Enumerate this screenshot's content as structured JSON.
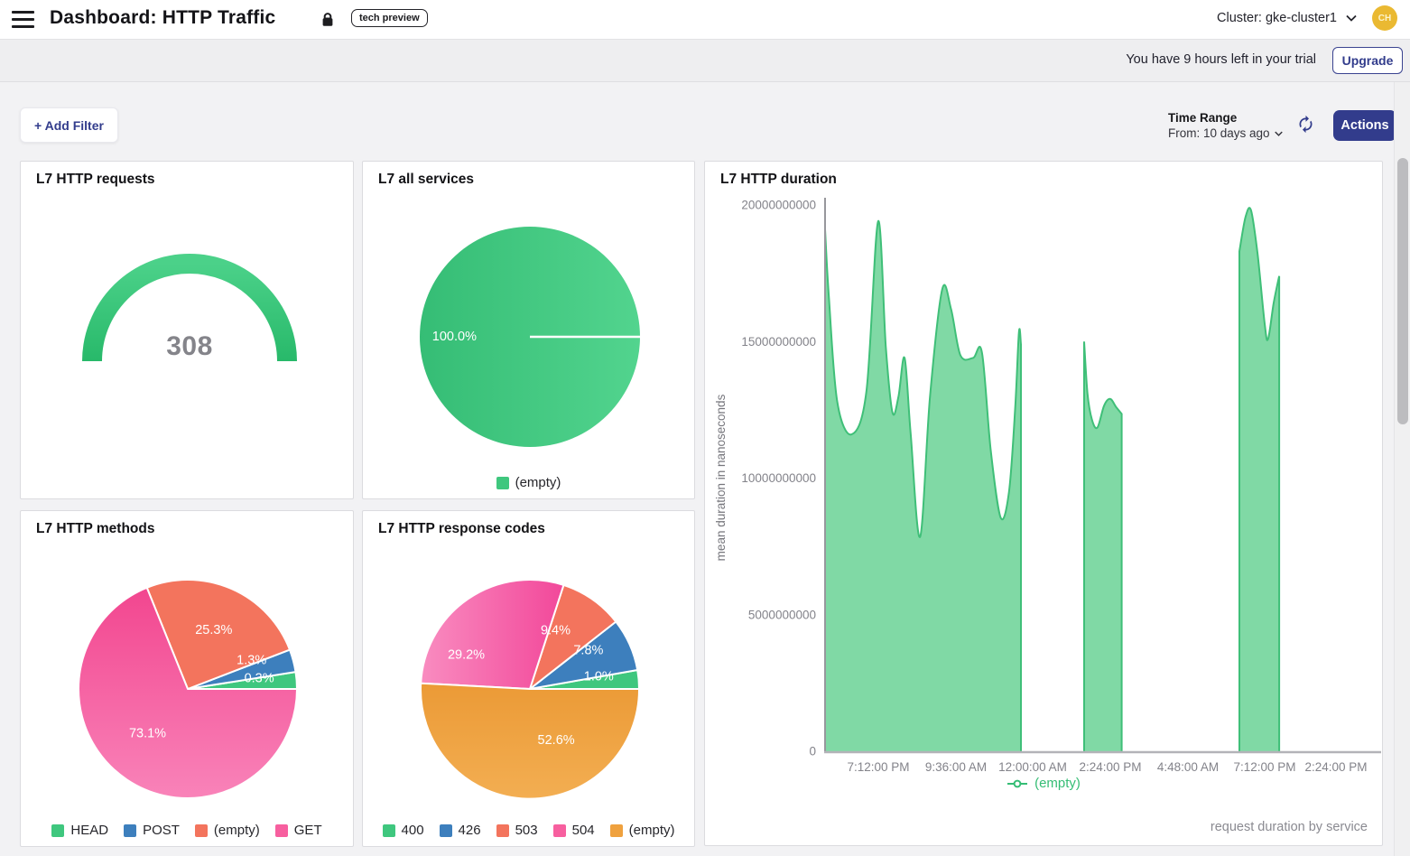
{
  "header": {
    "title": "Dashboard: HTTP Traffic",
    "badge": "tech preview",
    "cluster_label": "Cluster: gke-cluster1",
    "avatar_initials": "CH"
  },
  "banner": {
    "trial_text": "You have 9 hours left in your trial",
    "upgrade_label": "Upgrade"
  },
  "toolbar": {
    "add_filter_label": "+ Add Filter",
    "time_range_title": "Time Range",
    "time_range_from": "From: 10 days ago",
    "actions_label": "Actions"
  },
  "panels": {
    "requests": {
      "title": "L7 HTTP requests"
    },
    "services": {
      "title": "L7 all services"
    },
    "duration": {
      "title": "L7 HTTP duration",
      "y_axis_title": "mean duration in nanoseconds",
      "legend_label": "(empty)",
      "caption": "request duration by service"
    },
    "methods": {
      "title": "L7 HTTP methods"
    },
    "codes": {
      "title": "L7 HTTP response codes"
    }
  },
  "colors": {
    "accent_navy": "#323c8c",
    "green": "#3fc77e",
    "blue": "#3d7fbd",
    "salmon": "#f3745d",
    "pink": "#f75f9f",
    "orange": "#efa13e",
    "area_fill": "#80d9a5",
    "area_line": "#3fbf78",
    "avatar_bg": "#eab932"
  },
  "chart_data": [
    {
      "id": "requests",
      "type": "gauge",
      "title": "L7 HTTP requests",
      "value": 308,
      "display_value": "308",
      "arc_gradient": [
        "#4bd189",
        "#28b96a"
      ],
      "value_color": "#84848a"
    },
    {
      "id": "services",
      "type": "pie",
      "title": "L7 all services",
      "radius_line": true,
      "slices": [
        {
          "label": "(empty)",
          "pct": 100.0,
          "pct_label": "100.0%",
          "fill": {
            "grad": [
              "#35bd75",
              "#52d48e"
            ],
            "dir": "h"
          },
          "deg": [
            0,
            360
          ],
          "label_deg": 180,
          "label_r": 0.685
        }
      ],
      "legend": [
        {
          "label": "(empty)",
          "color": "#3fc77e"
        }
      ]
    },
    {
      "id": "duration",
      "type": "area",
      "title": "L7 HTTP duration",
      "series_name": "(empty)",
      "ylabel": "mean duration in nanoseconds",
      "ylim": [
        0,
        20000000000
      ],
      "yticks": [
        {
          "value": 20000000000,
          "label": "20000000000"
        },
        {
          "value": 15000000000,
          "label": "15000000000"
        },
        {
          "value": 10000000000,
          "label": "10000000000"
        },
        {
          "value": 5000000000,
          "label": "5000000000"
        },
        {
          "value": 0,
          "label": "0"
        }
      ],
      "xticks": [
        {
          "f": 0.0964,
          "label": "7:12:00 PM"
        },
        {
          "f": 0.2369,
          "label": "9:36:00 AM"
        },
        {
          "f": 0.3758,
          "label": "12:00:00 AM"
        },
        {
          "f": 0.5163,
          "label": "2:24:00 PM"
        },
        {
          "f": 0.6569,
          "label": "4:48:00 AM"
        },
        {
          "f": 0.7958,
          "label": "7:12:00 PM"
        },
        {
          "f": 0.9248,
          "label": "2:24:00 PM"
        }
      ],
      "unit": "nanoseconds",
      "segments_e9": [
        [
          [
            0.0,
            19.1
          ],
          [
            0.007,
            16.6
          ],
          [
            0.022,
            12.8
          ],
          [
            0.048,
            11.6
          ],
          [
            0.075,
            13.2
          ],
          [
            0.096,
            19.4
          ],
          [
            0.11,
            14.8
          ],
          [
            0.122,
            12.4
          ],
          [
            0.133,
            13.0
          ],
          [
            0.144,
            14.4
          ],
          [
            0.155,
            11.6
          ],
          [
            0.172,
            7.85
          ],
          [
            0.19,
            13.0
          ],
          [
            0.212,
            16.9
          ],
          [
            0.228,
            16.2
          ],
          [
            0.245,
            14.5
          ],
          [
            0.268,
            14.4
          ],
          [
            0.284,
            14.6
          ],
          [
            0.3,
            11.0
          ],
          [
            0.318,
            8.55
          ],
          [
            0.333,
            9.5
          ],
          [
            0.344,
            12.5
          ],
          [
            0.351,
            15.35
          ],
          [
            0.3546,
            14.9
          ]
        ],
        [
          [
            0.469,
            15.0
          ],
          [
            0.475,
            13.1
          ],
          [
            0.483,
            12.15
          ],
          [
            0.493,
            11.85
          ],
          [
            0.505,
            12.65
          ],
          [
            0.516,
            12.9
          ],
          [
            0.527,
            12.6
          ],
          [
            0.537,
            12.35
          ]
        ],
        [
          [
            0.75,
            18.3
          ],
          [
            0.761,
            19.55
          ],
          [
            0.771,
            19.8
          ],
          [
            0.783,
            18.2
          ],
          [
            0.796,
            15.6
          ],
          [
            0.802,
            15.1
          ],
          [
            0.812,
            16.4
          ],
          [
            0.822,
            17.4
          ]
        ]
      ],
      "line_color": "#3fbf78",
      "fill_color": "#80d9a5",
      "legend_color": "#35bd75",
      "legend_label": "(empty)",
      "caption": "request duration by service"
    },
    {
      "id": "methods",
      "type": "pie",
      "title": "L7 HTTP methods",
      "slices": [
        {
          "label": "HEAD",
          "pct": 0.3,
          "pct_label": "0.3%",
          "fill": "#3fc77e",
          "deg": [
            0,
            9
          ],
          "label_deg": 8,
          "label_r": 0.66
        },
        {
          "label": "POST",
          "pct": 1.3,
          "pct_label": "1.3%",
          "fill": "#3d7fbd",
          "deg": [
            9,
            21
          ],
          "label_deg": 24,
          "label_r": 0.64
        },
        {
          "label": "(empty)",
          "pct": 25.3,
          "pct_label": "25.3%",
          "fill": "#f3745d",
          "deg": [
            21,
            112
          ],
          "label_deg": 66,
          "label_r": 0.585
        },
        {
          "label": "GET",
          "pct": 73.1,
          "pct_label": "73.1%",
          "fill": {
            "grad": [
              "#f2468f",
              "#f983b9"
            ],
            "dir": "v"
          },
          "deg": [
            112,
            360
          ],
          "label_deg": 228,
          "label_r": 0.55
        }
      ],
      "legend": [
        {
          "label": "HEAD",
          "color": "#3fc77e"
        },
        {
          "label": "POST",
          "color": "#3d7fbd"
        },
        {
          "label": "(empty)",
          "color": "#f3745d"
        },
        {
          "label": "GET",
          "color": "#f75f9f"
        }
      ]
    },
    {
      "id": "codes",
      "type": "pie",
      "title": "L7 HTTP response codes",
      "slices": [
        {
          "label": "400",
          "pct": 1.0,
          "pct_label": "1.0%",
          "fill": "#3fc77e",
          "deg": [
            0,
            10
          ],
          "label_deg": 10,
          "label_r": 0.64
        },
        {
          "label": "426",
          "pct": 7.8,
          "pct_label": "7.8%",
          "fill": "#3d7fbd",
          "deg": [
            10,
            38
          ],
          "label_deg": 33,
          "label_r": 0.64
        },
        {
          "label": "503",
          "pct": 9.4,
          "pct_label": "9.4%",
          "fill": "#f3745d",
          "deg": [
            38,
            72
          ],
          "label_deg": 66,
          "label_r": 0.58
        },
        {
          "label": "504",
          "pct": 29.2,
          "pct_label": "29.2%",
          "fill": {
            "grad": [
              "#f98cc0",
              "#f2489a"
            ],
            "dir": "h"
          },
          "deg": [
            72,
            177
          ],
          "label_deg": 152,
          "label_r": 0.66
        },
        {
          "label": "(empty)",
          "pct": 52.6,
          "pct_label": "52.6%",
          "fill": {
            "grad": [
              "#eb9a36",
              "#f3ae52"
            ],
            "dir": "v"
          },
          "deg": [
            177,
            360
          ],
          "label_deg": 297,
          "label_r": 0.53
        }
      ],
      "legend": [
        {
          "label": "400",
          "color": "#3fc77e"
        },
        {
          "label": "426",
          "color": "#3d7fbd"
        },
        {
          "label": "503",
          "color": "#f3745d"
        },
        {
          "label": "504",
          "color": "#f75f9f"
        },
        {
          "label": "(empty)",
          "color": "#efa13e"
        }
      ]
    }
  ]
}
